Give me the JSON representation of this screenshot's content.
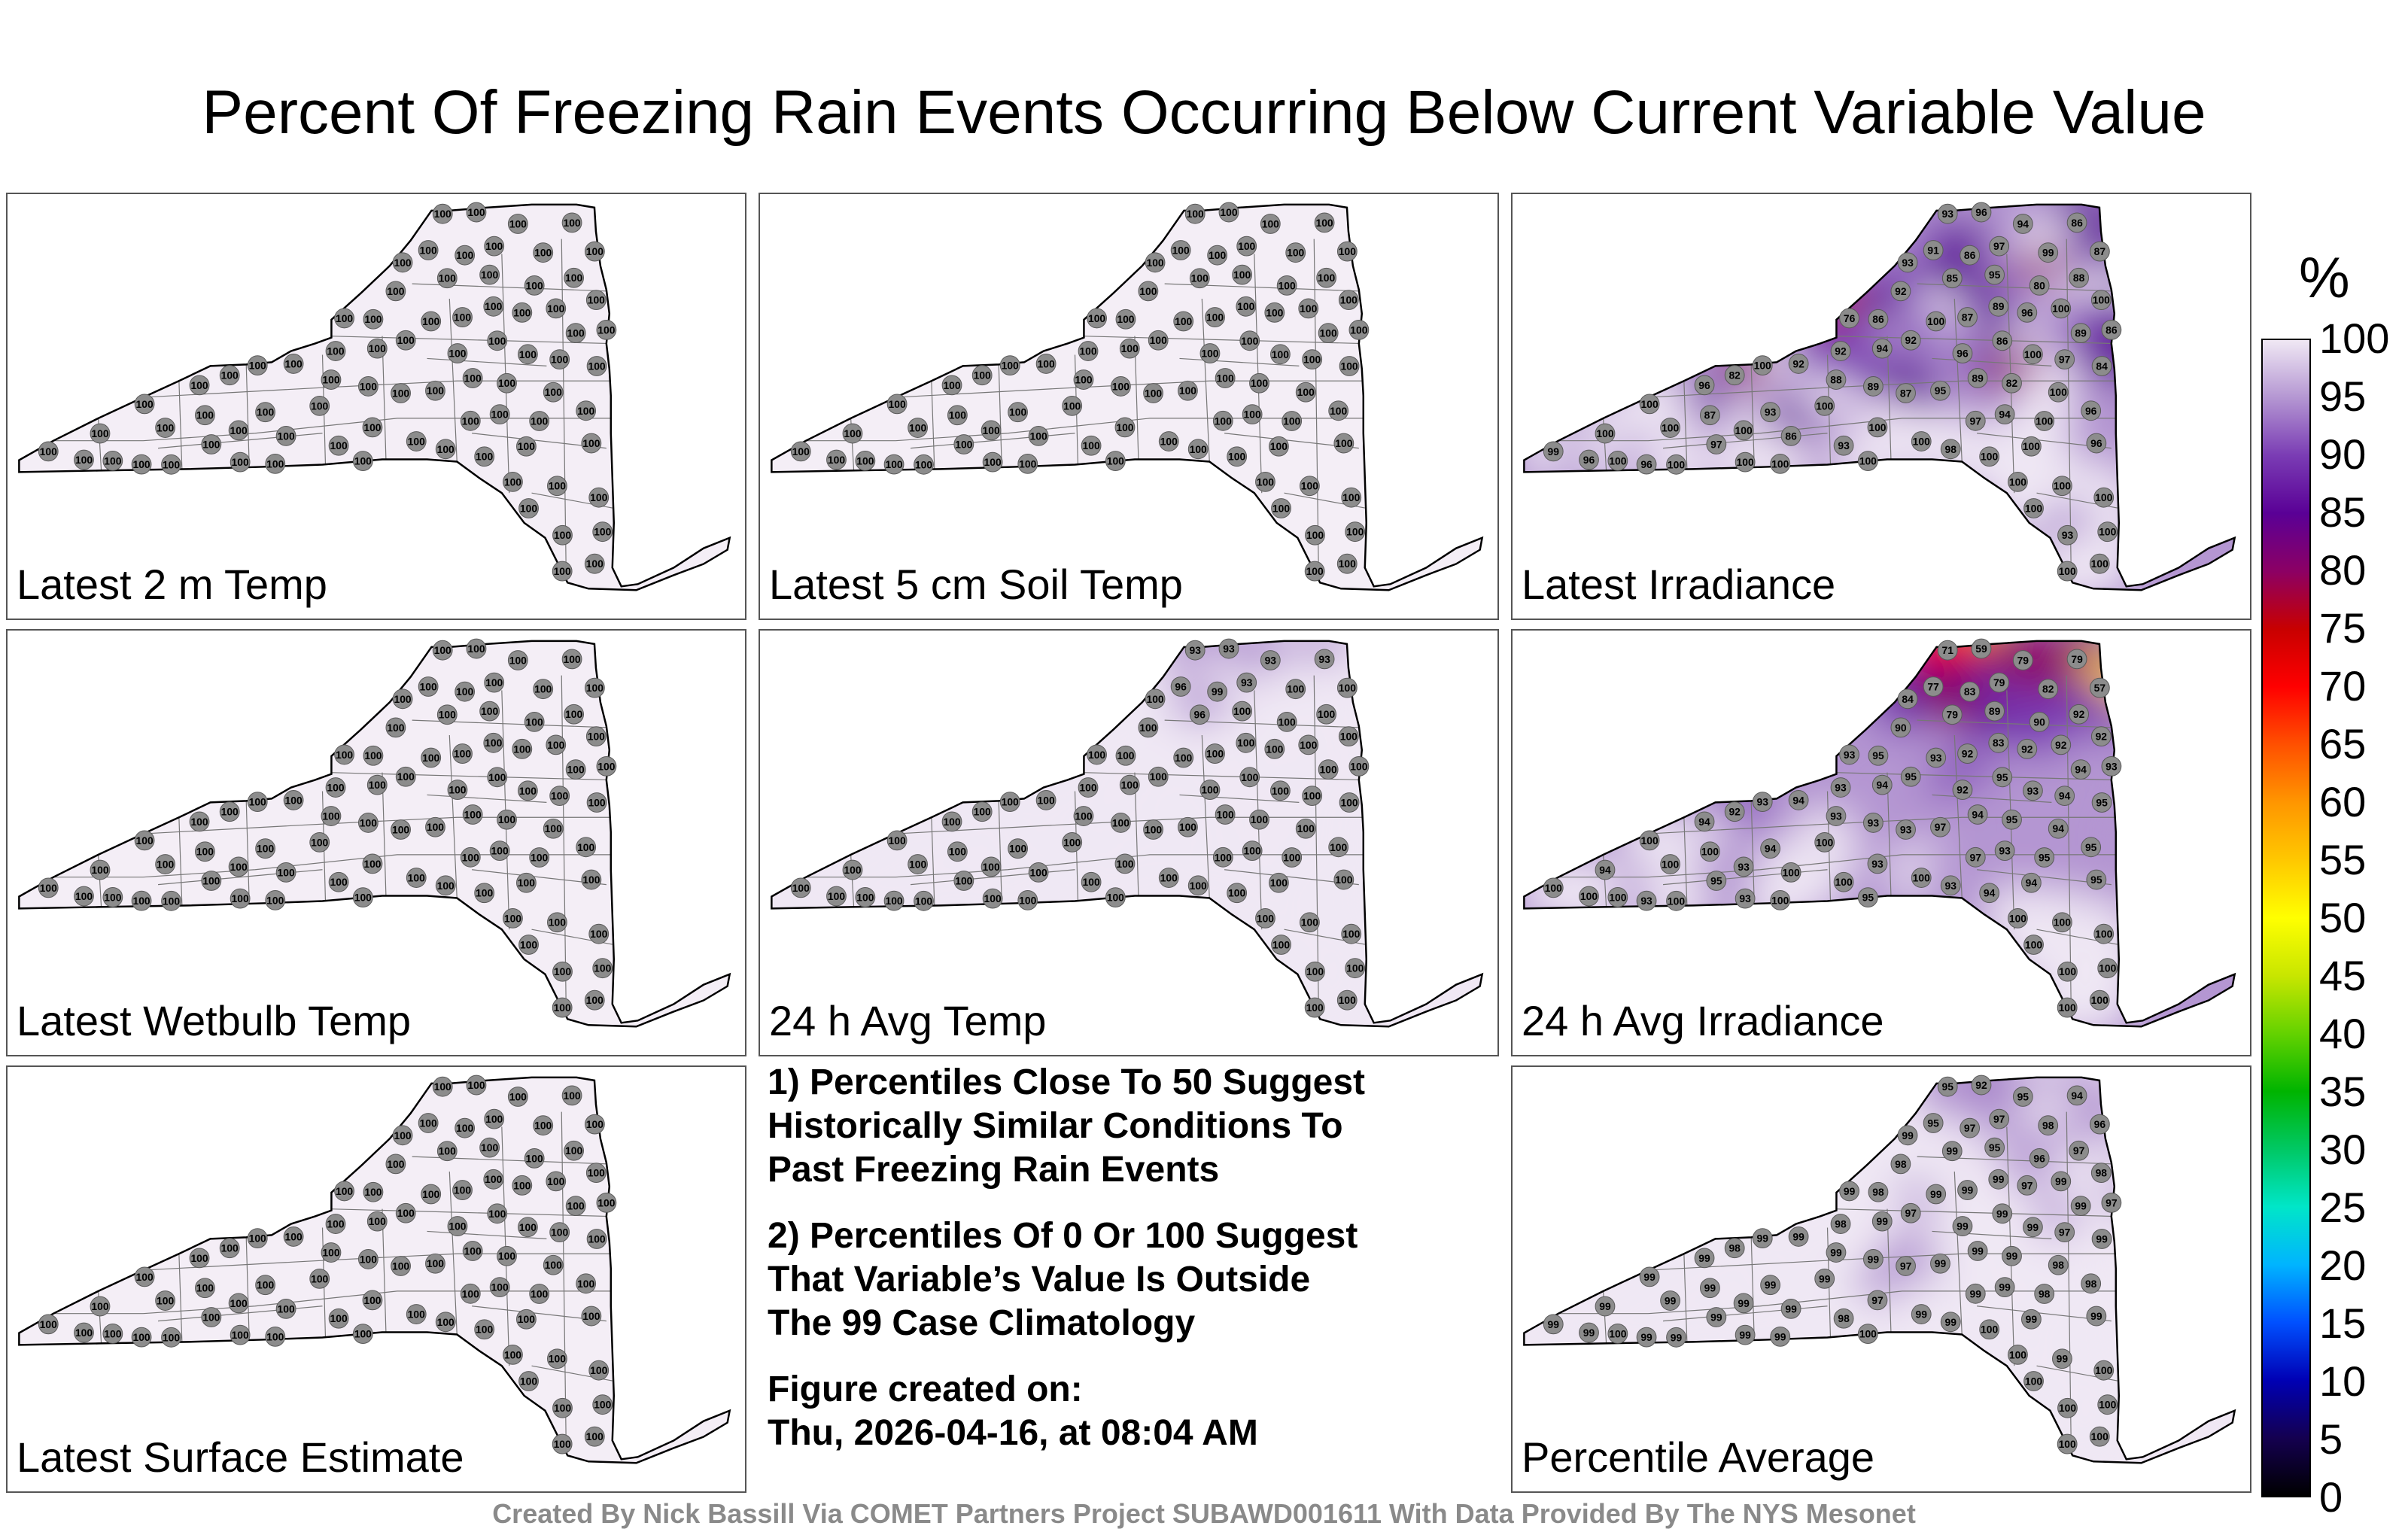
{
  "title": "Percent Of Freezing Rain Events Occurring Below Current Variable Value",
  "panels": [
    {
      "label": "Latest 2 m Temp",
      "mode": "uniform"
    },
    {
      "label": "Latest 5 cm Soil Temp",
      "mode": "uniform"
    },
    {
      "label": "Latest Irradiance",
      "mode": "irradiance"
    },
    {
      "label": "Latest Wetbulb Temp",
      "mode": "uniform"
    },
    {
      "label": "24 h Avg Temp",
      "mode": "avgtemp"
    },
    {
      "label": "24 h Avg Irradiance",
      "mode": "avgirr"
    },
    {
      "label": "Latest Surface Estimate",
      "mode": "uniform"
    },
    {
      "label": "Percentile Average",
      "mode": "average"
    }
  ],
  "notes": {
    "note1": "1) Percentiles Close To 50 Suggest\nHistorically Similar Conditions To\nPast Freezing Rain Events",
    "note2": "2) Percentiles Of 0 Or 100 Suggest\nThat Variable’s Value Is Outside\nThe 99 Case Climatology",
    "created": "Figure created on:\nThu, 2026-04-16, at 08:04 AM"
  },
  "colorbar": {
    "unit": "%",
    "ticks": [
      "100",
      "95",
      "90",
      "85",
      "80",
      "75",
      "70",
      "65",
      "60",
      "55",
      "50",
      "45",
      "40",
      "35",
      "30",
      "25",
      "20",
      "15",
      "10",
      "5",
      "0"
    ],
    "colors": [
      "#000000",
      "#140050",
      "#0000b4",
      "#0050ff",
      "#00b4ff",
      "#00e6c8",
      "#00c864",
      "#00b400",
      "#64d200",
      "#c8e600",
      "#ffff00",
      "#ffc800",
      "#ff9600",
      "#ff5000",
      "#ff0000",
      "#c80000",
      "#8c0064",
      "#5a0096",
      "#7a3cb4",
      "#b496d2",
      "#f0e8f4"
    ]
  },
  "stations": {
    "uniform": [
      "100",
      "100",
      "100",
      "100",
      "100",
      "100",
      "100",
      "100",
      "100",
      "100",
      "100",
      "100",
      "100",
      "100",
      "100",
      "100",
      "100",
      "100",
      "100",
      "100",
      "100",
      "100",
      "100",
      "100",
      "100",
      "100",
      "100",
      "100",
      "100",
      "100",
      "100",
      "100",
      "100",
      "100",
      "100",
      "100",
      "100",
      "100",
      "100",
      "100",
      "100",
      "100",
      "100",
      "100",
      "100",
      "100",
      "100",
      "100",
      "100",
      "100",
      "100",
      "100",
      "100",
      "100",
      "100",
      "100",
      "100",
      "100",
      "100",
      "100",
      "100",
      "100",
      "100",
      "100",
      "100",
      "100",
      "100",
      "100",
      "100",
      "100",
      "100",
      "100",
      "100",
      "100",
      "100",
      "100",
      "100",
      "100",
      "100",
      "100"
    ],
    "irradiance": [
      "96",
      "93",
      "86",
      "94",
      "97",
      "91",
      "87",
      "99",
      "86",
      "93",
      "95",
      "88",
      "85",
      "80",
      "92",
      "100",
      "89",
      "100",
      "96",
      "87",
      "76",
      "86",
      "100",
      "86",
      "89",
      "92",
      "86",
      "94",
      "92",
      "96",
      "100",
      "97",
      "92",
      "100",
      "84",
      "82",
      "89",
      "88",
      "82",
      "96",
      "89",
      "95",
      "100",
      "87",
      "100",
      "100",
      "96",
      "93",
      "94",
      "87",
      "97",
      "100",
      "100",
      "100",
      "100",
      "100",
      "86",
      "100",
      "96",
      "97",
      "93",
      "100",
      "98",
      "99",
      "100",
      "96",
      "100",
      "100",
      "100",
      "100",
      "96",
      "100",
      "100",
      "100",
      "100",
      "100",
      "100",
      "93",
      "100",
      "100"
    ],
    "avgtemp": [
      "93",
      "93",
      "93",
      "93",
      "93",
      "96",
      "100",
      "100",
      "99",
      "100",
      "100",
      "100",
      "96",
      "100",
      "100",
      "100",
      "100",
      "100",
      "100",
      "100",
      "100",
      "100",
      "100",
      "100",
      "100",
      "100",
      "100",
      "100",
      "100",
      "100",
      "100",
      "100",
      "100",
      "100",
      "100",
      "100",
      "100",
      "100",
      "100",
      "100",
      "100",
      "100",
      "100",
      "100",
      "100",
      "100",
      "100",
      "100",
      "100",
      "100",
      "100",
      "100",
      "100",
      "100",
      "100",
      "100",
      "100",
      "100",
      "100",
      "100",
      "100",
      "100",
      "100",
      "100",
      "100",
      "100",
      "100",
      "100",
      "100",
      "100",
      "100",
      "100",
      "100",
      "100",
      "100",
      "100",
      "100",
      "100",
      "100",
      "100"
    ],
    "avgirr": [
      "59",
      "71",
      "79",
      "79",
      "79",
      "77",
      "57",
      "82",
      "83",
      "84",
      "89",
      "92",
      "79",
      "90",
      "90",
      "92",
      "83",
      "92",
      "92",
      "92",
      "93",
      "95",
      "93",
      "93",
      "94",
      "95",
      "95",
      "94",
      "93",
      "92",
      "93",
      "94",
      "94",
      "93",
      "95",
      "92",
      "94",
      "93",
      "95",
      "94",
      "93",
      "97",
      "94",
      "93",
      "100",
      "100",
      "95",
      "94",
      "93",
      "100",
      "97",
      "95",
      "93",
      "100",
      "93",
      "94",
      "100",
      "100",
      "95",
      "95",
      "100",
      "94",
      "93",
      "100",
      "94",
      "100",
      "100",
      "95",
      "93",
      "100",
      "93",
      "100",
      "100",
      "100",
      "100",
      "100",
      "100",
      "100",
      "100",
      "100"
    ],
    "average": [
      "92",
      "95",
      "94",
      "95",
      "97",
      "95",
      "96",
      "98",
      "97",
      "99",
      "95",
      "97",
      "99",
      "96",
      "98",
      "98",
      "99",
      "99",
      "97",
      "99",
      "99",
      "98",
      "99",
      "97",
      "99",
      "97",
      "99",
      "99",
      "98",
      "99",
      "99",
      "97",
      "99",
      "99",
      "99",
      "98",
      "99",
      "99",
      "99",
      "99",
      "99",
      "99",
      "98",
      "97",
      "99",
      "99",
      "98",
      "99",
      "99",
      "99",
      "99",
      "98",
      "97",
      "99",
      "99",
      "99",
      "99",
      "99",
      "99",
      "99",
      "98",
      "99",
      "99",
      "99",
      "100",
      "99",
      "100",
      "100",
      "99",
      "99",
      "99",
      "99",
      "100",
      "99",
      "100",
      "100",
      "100",
      "100",
      "100",
      "100"
    ]
  },
  "footer": "Created By Nick Bassill Via COMET Partners Project SUBAWD001611 With Data Provided By The NYS Mesonet"
}
